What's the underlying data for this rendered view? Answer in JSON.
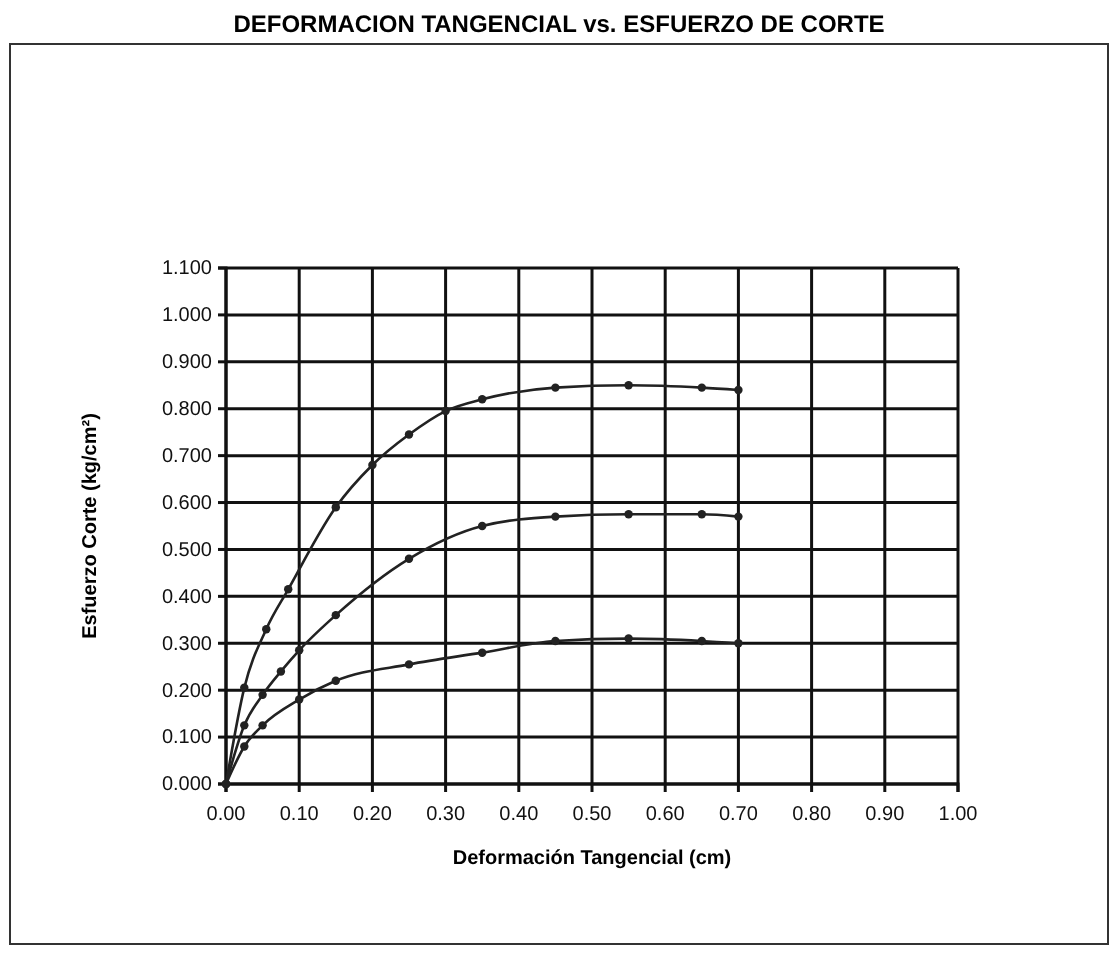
{
  "chart_data": {
    "type": "line",
    "title": "DEFORMACION TANGENCIAL vs. ESFUERZO DE CORTE",
    "xlabel": "Deformación Tangencial (cm)",
    "ylabel": "Esfuerzo Corte (kg/cm²)",
    "xlim": [
      0,
      1
    ],
    "xticks": [
      {
        "value": 0,
        "label": "0.00"
      },
      {
        "value": 0.1,
        "label": "0.10"
      },
      {
        "value": 0.2,
        "label": "0.20"
      },
      {
        "value": 0.3,
        "label": "0.30"
      },
      {
        "value": 0.4,
        "label": "0.40"
      },
      {
        "value": 0.5,
        "label": "0.50"
      },
      {
        "value": 0.6,
        "label": "0.60"
      },
      {
        "value": 0.7,
        "label": "0.70"
      },
      {
        "value": 0.8,
        "label": "0.80"
      },
      {
        "value": 0.9,
        "label": "0.90"
      },
      {
        "value": 1,
        "label": "1.00"
      }
    ],
    "ylim": [
      0,
      1.1
    ],
    "yticks": [
      {
        "value": 0,
        "label": "0.000"
      },
      {
        "value": 0.1,
        "label": "0.100"
      },
      {
        "value": 0.2,
        "label": "0.200"
      },
      {
        "value": 0.3,
        "label": "0.300"
      },
      {
        "value": 0.4,
        "label": "0.400"
      },
      {
        "value": 0.5,
        "label": "0.500"
      },
      {
        "value": 0.6,
        "label": "0.600"
      },
      {
        "value": 0.7,
        "label": "0.700"
      },
      {
        "value": 0.8,
        "label": "0.800"
      },
      {
        "value": 0.9,
        "label": "0.900"
      },
      {
        "value": 1,
        "label": "1.000"
      },
      {
        "value": 1.1,
        "label": "1.100"
      }
    ],
    "grid": true,
    "marker": "circle",
    "line_style": "solid",
    "series": [
      {
        "color": "#222222",
        "x": [
          0,
          0.025,
          0.055,
          0.085,
          0.15,
          0.2,
          0.25,
          0.3,
          0.35,
          0.45,
          0.55,
          0.65,
          0.7
        ],
        "values": [
          0,
          0.205,
          0.33,
          0.415,
          0.59,
          0.68,
          0.745,
          0.795,
          0.82,
          0.845,
          0.85,
          0.845,
          0.84
        ]
      },
      {
        "color": "#222222",
        "x": [
          0,
          0.025,
          0.05,
          0.075,
          0.1,
          0.15,
          0.25,
          0.35,
          0.45,
          0.55,
          0.65,
          0.7
        ],
        "values": [
          0,
          0.125,
          0.19,
          0.24,
          0.285,
          0.36,
          0.48,
          0.55,
          0.57,
          0.575,
          0.575,
          0.57
        ]
      },
      {
        "color": "#222222",
        "x": [
          0,
          0.025,
          0.05,
          0.1,
          0.15,
          0.25,
          0.35,
          0.45,
          0.55,
          0.65,
          0.7
        ],
        "values": [
          0,
          0.08,
          0.125,
          0.18,
          0.22,
          0.255,
          0.28,
          0.305,
          0.31,
          0.305,
          0.3
        ]
      }
    ]
  }
}
